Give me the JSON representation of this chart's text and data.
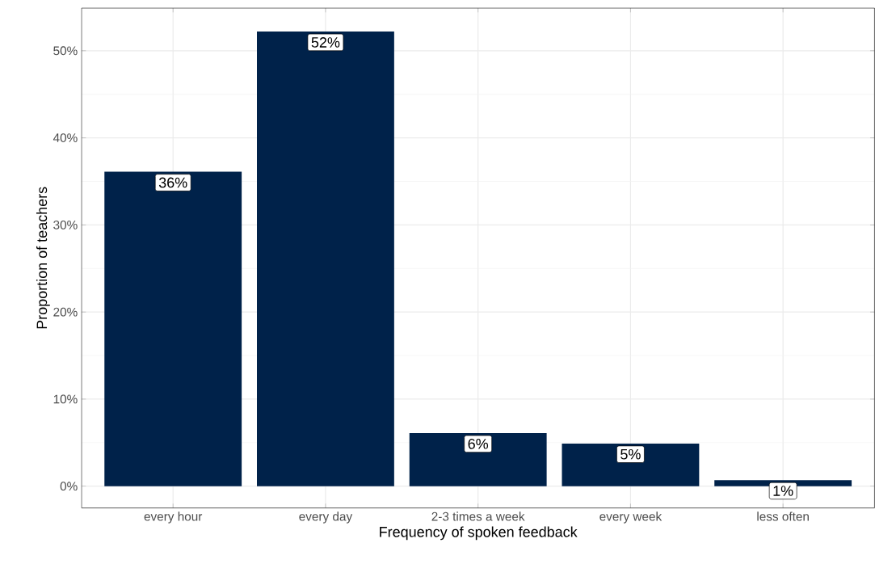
{
  "chart_data": {
    "type": "bar",
    "xlabel": "Frequency of spoken feedback",
    "ylabel": "Proportion of teachers",
    "categories": [
      "every hour",
      "every day",
      "2-3 times a week",
      "every week",
      "less often"
    ],
    "values": [
      36.1,
      52.2,
      6.1,
      4.9,
      0.7
    ],
    "value_labels": [
      "36%",
      "52%",
      "6%",
      "5%",
      "1%"
    ],
    "color": "#00224a",
    "ylim": [
      -2.5,
      54.9
    ],
    "yticks": [
      {
        "value": 0,
        "label": "0%"
      },
      {
        "value": 10,
        "label": "10%"
      },
      {
        "value": 20,
        "label": "20%"
      },
      {
        "value": 30,
        "label": "30%"
      },
      {
        "value": 40,
        "label": "40%"
      },
      {
        "value": 50,
        "label": "50%"
      }
    ],
    "grid": true
  }
}
